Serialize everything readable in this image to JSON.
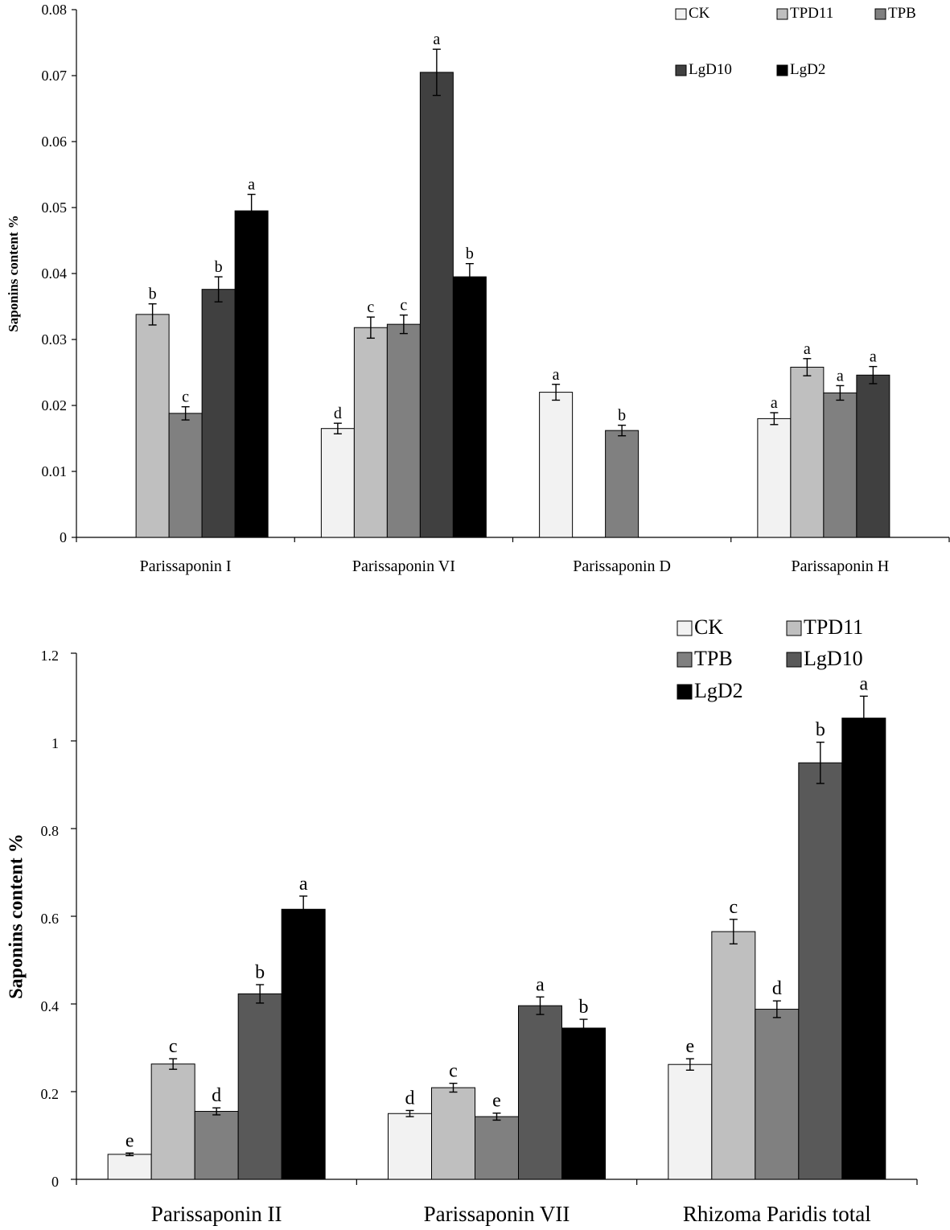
{
  "chart_data": [
    {
      "type": "bar",
      "title": "",
      "xlabel": "",
      "ylabel": "Saponins content %",
      "ylim": [
        0,
        0.08
      ],
      "yticks": [
        "0",
        "0.01",
        "0.02",
        "0.03",
        "0.04",
        "0.05",
        "0.06",
        "0.07",
        "0.08"
      ],
      "grid": false,
      "legend_position": "top-right",
      "categories": [
        "Parissaponin I",
        "Parissaponin VI",
        "Parissaponin D",
        "Parissaponin H"
      ],
      "series": [
        {
          "name": "CK",
          "color": "#f2f2f2",
          "values": [
            null,
            0.0165,
            0.022,
            0.018
          ],
          "errors": [
            null,
            0.0008,
            0.0012,
            0.0009
          ],
          "letters": [
            "",
            "d",
            "a",
            "a"
          ]
        },
        {
          "name": "TPD11",
          "color": "#bfbfbf",
          "values": [
            0.0338,
            0.0318,
            null,
            0.0258
          ],
          "errors": [
            0.0016,
            0.0016,
            null,
            0.0013
          ],
          "letters": [
            "b",
            "c",
            "",
            "a"
          ]
        },
        {
          "name": "TPB",
          "color": "#808080",
          "values": [
            0.0188,
            0.0323,
            0.0162,
            0.0219
          ],
          "errors": [
            0.001,
            0.0014,
            0.0008,
            0.0011
          ],
          "letters": [
            "c",
            "c",
            "b",
            "a"
          ]
        },
        {
          "name": "LgD10",
          "color": "#404040",
          "values": [
            0.0376,
            0.0705,
            null,
            0.0246
          ],
          "errors": [
            0.0019,
            0.0035,
            null,
            0.0013
          ],
          "letters": [
            "b",
            "a",
            "",
            "a"
          ]
        },
        {
          "name": "LgD2",
          "color": "#000000",
          "values": [
            0.0495,
            0.0395,
            null,
            null
          ],
          "errors": [
            0.0025,
            0.002,
            null,
            null
          ],
          "letters": [
            "a",
            "b",
            "",
            ""
          ]
        }
      ]
    },
    {
      "type": "bar",
      "title": "",
      "xlabel": "",
      "ylabel": "Saponins content %",
      "ylim": [
        0,
        1.2
      ],
      "yticks": [
        "0",
        "0.2",
        "0.4",
        "0.6",
        "0.8",
        "1",
        "1.2"
      ],
      "grid": false,
      "legend_position": "top-right",
      "categories": [
        "Parissaponin II",
        "Parissaponin VII",
        "Rhizoma Paridis total"
      ],
      "series": [
        {
          "name": "CK",
          "color": "#f2f2f2",
          "values": [
            0.057,
            0.15,
            0.262
          ],
          "errors": [
            0.003,
            0.007,
            0.013
          ],
          "letters": [
            "e",
            "d",
            "e"
          ]
        },
        {
          "name": "TPD11",
          "color": "#bfbfbf",
          "values": [
            0.263,
            0.209,
            0.565
          ],
          "errors": [
            0.012,
            0.01,
            0.028
          ],
          "letters": [
            "c",
            "c",
            "c"
          ]
        },
        {
          "name": "TPB",
          "color": "#808080",
          "values": [
            0.155,
            0.143,
            0.388
          ],
          "errors": [
            0.008,
            0.008,
            0.019
          ],
          "letters": [
            "d",
            "e",
            "d"
          ]
        },
        {
          "name": "LgD10",
          "color": "#595959",
          "values": [
            0.423,
            0.396,
            0.95
          ],
          "errors": [
            0.021,
            0.02,
            0.047
          ],
          "letters": [
            "b",
            "a",
            "b"
          ]
        },
        {
          "name": "LgD2",
          "color": "#000000",
          "values": [
            0.616,
            0.345,
            1.052
          ],
          "errors": [
            0.03,
            0.02,
            0.05
          ],
          "letters": [
            "a",
            "b",
            "a"
          ]
        }
      ]
    }
  ]
}
